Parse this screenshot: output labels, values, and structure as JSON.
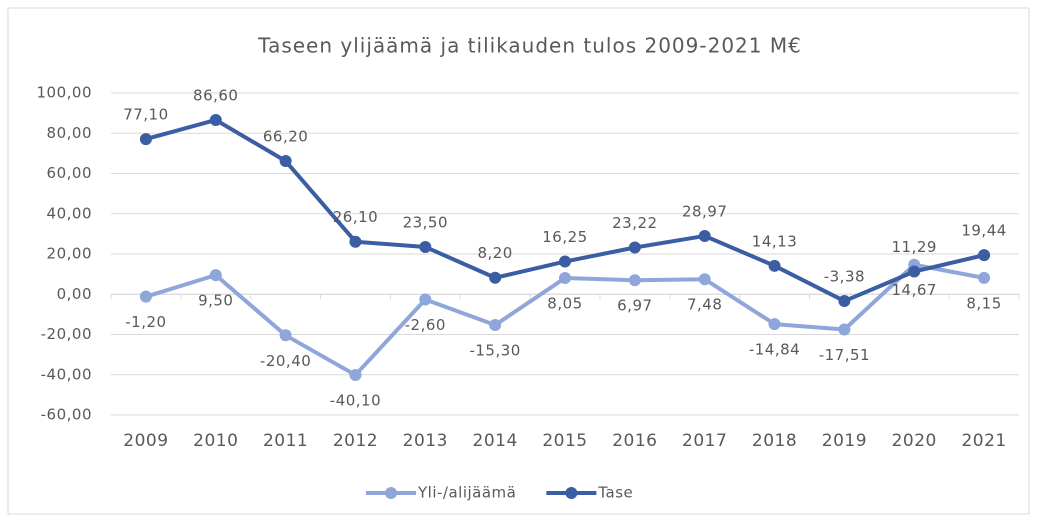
{
  "chart_data": {
    "type": "line",
    "title": "Taseen ylijäämä ja tilikauden tulos 2009-2021 M€",
    "categories": [
      "2009",
      "2010",
      "2011",
      "2012",
      "2013",
      "2014",
      "2015",
      "2016",
      "2017",
      "2018",
      "2019",
      "2020",
      "2021"
    ],
    "series": [
      {
        "name": "Yli-/alijäämä",
        "color": "#8fa6da",
        "values": [
          -1.2,
          9.5,
          -20.4,
          -40.1,
          -2.6,
          -15.3,
          8.05,
          6.97,
          7.48,
          -14.84,
          -17.51,
          14.67,
          8.15
        ],
        "value_labels": [
          "-1,20",
          "9,50",
          "-20,40",
          "-40,10",
          "-2,60",
          "-15,30",
          "8,05",
          "6,97",
          "7,48",
          "-14,84",
          "-17,51",
          "14,67",
          "8,15"
        ]
      },
      {
        "name": "Tase",
        "color": "#3b5da3",
        "values": [
          77.1,
          86.6,
          66.2,
          26.1,
          23.5,
          8.2,
          16.25,
          23.22,
          28.97,
          14.13,
          -3.38,
          11.29,
          19.44
        ],
        "value_labels": [
          "77,10",
          "86,60",
          "66,20",
          "26,10",
          "23,50",
          "8,20",
          "16,25",
          "23,22",
          "28,97",
          "14,13",
          "-3,38",
          "11,29",
          "19,44"
        ]
      }
    ],
    "ylim": [
      -60,
      100
    ],
    "yticks": [
      {
        "value": -60,
        "label": "-60,00"
      },
      {
        "value": -40,
        "label": "-40,00"
      },
      {
        "value": -20,
        "label": "-20,00"
      },
      {
        "value": 0,
        "label": "0,00"
      },
      {
        "value": 20,
        "label": "20,00"
      },
      {
        "value": 40,
        "label": "40,00"
      },
      {
        "value": 60,
        "label": "60,00"
      },
      {
        "value": 80,
        "label": "80,00"
      },
      {
        "value": 100,
        "label": "100,00"
      }
    ],
    "grid": true,
    "legend": "bottom"
  }
}
